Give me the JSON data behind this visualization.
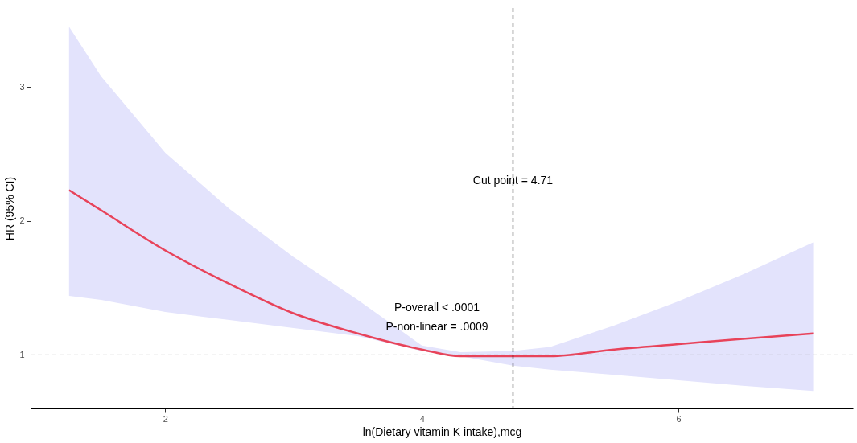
{
  "chart_data": {
    "type": "line",
    "xlabel": "ln(Dietary vitamin K intake),mcg",
    "ylabel": "HR (95% CI)",
    "x": [
      1.25,
      1.5,
      2,
      2.5,
      3,
      3.5,
      4,
      4.3,
      4.71,
      5,
      5.5,
      6,
      6.5,
      7.05
    ],
    "series": [
      {
        "color": "#e8435a",
        "values": [
          2.23,
          2.08,
          1.78,
          1.53,
          1.31,
          1.16,
          1.04,
          0.99,
          0.99,
          0.99,
          1.04,
          1.08,
          1.12,
          1.16
        ],
        "lower": [
          1.44,
          1.41,
          1.32,
          1.26,
          1.2,
          1.14,
          1.03,
          0.99,
          0.92,
          0.89,
          0.85,
          0.81,
          0.77,
          0.73
        ],
        "upper": [
          3.45,
          3.08,
          2.51,
          2.09,
          1.73,
          1.41,
          1.07,
          1.02,
          1.03,
          1.06,
          1.22,
          1.4,
          1.6,
          1.84
        ]
      }
    ],
    "xlim": [
      0.95,
      7.36
    ],
    "ylim": [
      0.6,
      3.59
    ],
    "xticks": [
      2,
      4,
      6
    ],
    "yticks": [
      1,
      2,
      3
    ],
    "grid": false,
    "ref_lines": [
      {
        "axis": "x",
        "value": 4.71,
        "color": "#000000",
        "line_style": "dashed",
        "label": "Cut point = 4.71"
      },
      {
        "axis": "y",
        "value": 1,
        "color": "#a0a0a0",
        "line_style": "dashed"
      }
    ],
    "annotations": [
      "P-overall < .0001",
      "P-non-linear = .0009"
    ]
  }
}
